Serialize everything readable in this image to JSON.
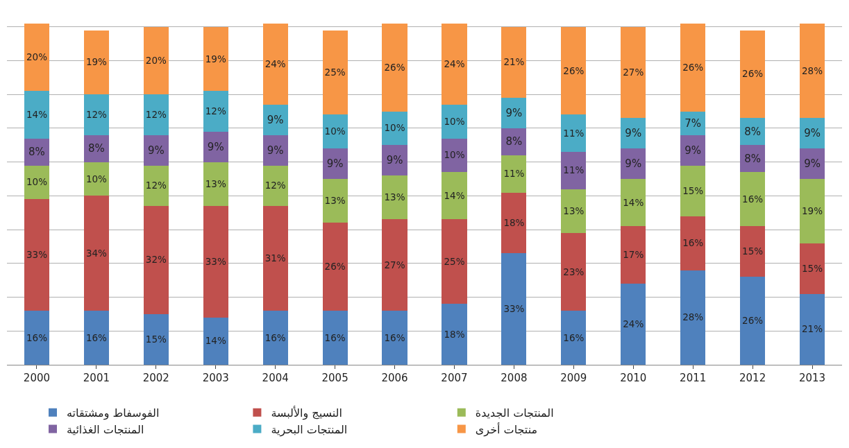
{
  "chart_data": {
    "type": "bar",
    "stacked": true,
    "categories": [
      "2000",
      "2001",
      "2002",
      "2003",
      "2004",
      "2005",
      "2006",
      "2007",
      "2008",
      "2009",
      "2010",
      "2011",
      "2012",
      "2013"
    ],
    "series": [
      {
        "name": "الفوسفاط ومشتقاته",
        "color": "#4f81bd",
        "values": [
          16,
          16,
          15,
          14,
          16,
          16,
          16,
          18,
          33,
          16,
          24,
          28,
          26,
          21
        ],
        "value_labels": [
          "16%",
          "16%",
          "15%",
          "14%",
          "16%",
          "16%",
          "16%",
          "18%",
          "33%",
          "16%",
          "24%",
          "28%",
          "26%",
          "21%"
        ]
      },
      {
        "name": "النسيج والألبسة",
        "color": "#c0504d",
        "values": [
          33,
          34,
          32,
          33,
          31,
          26,
          27,
          25,
          18,
          23,
          17,
          16,
          15,
          15
        ],
        "value_labels": [
          "33%",
          "34%",
          "32%",
          "33%",
          "31%",
          "26%",
          "27%",
          "25%",
          "18%",
          "23%",
          "17%",
          "16%",
          "15%",
          "15%"
        ]
      },
      {
        "name": "المنتجات الجديدة",
        "color": "#9bbb59",
        "values": [
          10,
          10,
          12,
          13,
          12,
          13,
          13,
          14,
          11,
          13,
          14,
          15,
          16,
          19
        ],
        "value_labels": [
          "10%",
          "10%",
          "12%",
          "13%",
          "12%",
          "13%",
          "13%",
          "14%",
          "11%",
          "13%",
          "14%",
          "15%",
          "16%",
          "19%"
        ]
      },
      {
        "name": "المنتجات الغذائية",
        "color": "#8064a2",
        "values": [
          8,
          8,
          9,
          9,
          9,
          9,
          9,
          10,
          8,
          11,
          9,
          9,
          8,
          9
        ],
        "value_labels": [
          "8%",
          "8%",
          "9%",
          "9%",
          "9%",
          "9%",
          "9%",
          "10%",
          "8%",
          "11%",
          "9%",
          "9%",
          "8%",
          "9%"
        ]
      },
      {
        "name": "المنتجات البحرية",
        "color": "#4bacc6",
        "values": [
          14,
          12,
          12,
          12,
          9,
          10,
          10,
          10,
          9,
          11,
          9,
          7,
          8,
          9
        ],
        "value_labels": [
          "14%",
          "12%",
          "12%",
          "12%",
          "9%",
          "10%",
          "10%",
          "10%",
          "9%",
          "11%",
          "9%",
          "7%",
          "8%",
          "9%"
        ]
      },
      {
        "name": "منتجات أخرى",
        "color": "#f79646",
        "values": [
          20,
          19,
          20,
          19,
          24,
          25,
          26,
          24,
          21,
          26,
          27,
          26,
          26,
          28
        ],
        "value_labels": [
          "20%",
          "19%",
          "20%",
          "19%",
          "24%",
          "25%",
          "26%",
          "24%",
          "21%",
          "26%",
          "27%",
          "26%",
          "26%",
          "28%"
        ]
      }
    ],
    "yticks": [
      {
        "value": 0,
        "label": null
      },
      {
        "value": 10,
        "label": null
      },
      {
        "value": 20,
        "label": null
      },
      {
        "value": 30,
        "label": null
      },
      {
        "value": 40,
        "label": null
      },
      {
        "value": 50,
        "label": null
      },
      {
        "value": 60,
        "label": null
      },
      {
        "value": 70,
        "label": null
      },
      {
        "value": 80,
        "label": null
      },
      {
        "value": 90,
        "label": null
      },
      {
        "value": 100,
        "label": null
      }
    ],
    "grid": "y",
    "legend": "bottom",
    "tick_labels": "x"
  }
}
